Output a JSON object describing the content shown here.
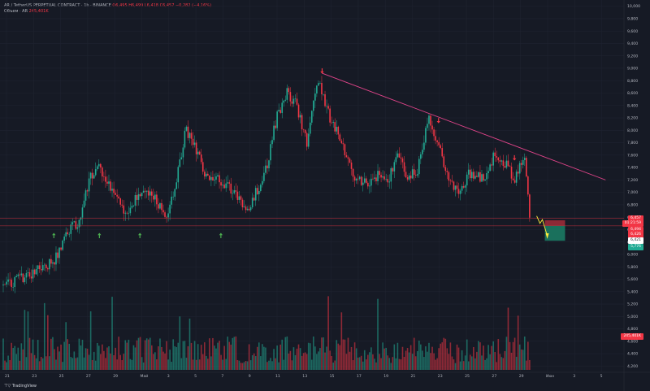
{
  "header": {
    "symbol_line": "AR / TetherUS PERPETUAL CONTRACT · 1h · BINANCE",
    "ohlc": [
      {
        "label": "O",
        "value": "6,495"
      },
      {
        "label": "H",
        "value": "6,499"
      },
      {
        "label": "L",
        "value": "6,418"
      },
      {
        "label": "C",
        "value": "6,457"
      },
      {
        "label": "",
        "value": "−0,282 (−4,16%)"
      }
    ],
    "volume_label": "Объем · AR",
    "volume_value": "245,401K"
  },
  "price_tags": [
    {
      "text": "6,457",
      "color": "#f23645"
    },
    {
      "text": "01:21:59",
      "color": "#f23645"
    },
    {
      "text": "6,494",
      "color": "#f23645"
    },
    {
      "text": "6,426",
      "color": "#f23645"
    },
    {
      "text": "6,421",
      "color": "#ffffff"
    },
    {
      "text": "5,776",
      "color": "#22ab94"
    },
    {
      "text": "245,401K",
      "color": "#f23645"
    }
  ],
  "logo_text": "TradingView",
  "colors": {
    "bg": "#161a25",
    "up": "#22ab94",
    "down": "#f23645",
    "trendline": "#e2448a",
    "support": "#f23645",
    "arrow_up": "#4caf50",
    "arrow_down": "#f23645",
    "target_arrow": "#ffeb3b",
    "axis_text": "#b2b5be"
  },
  "chart_data": {
    "type": "candlestick",
    "title": "",
    "y_axis_ticks": [
      4.2,
      4.4,
      4.6,
      4.8,
      5.0,
      5.2,
      5.4,
      5.6,
      5.8,
      6.0,
      6.2,
      6.4,
      6.6,
      6.8,
      7.0,
      7.2,
      7.4,
      7.6,
      7.8,
      8.0,
      8.2,
      8.4,
      8.6,
      8.8,
      9.0,
      9.2,
      9.4,
      9.6,
      9.8,
      10.0
    ],
    "y_tick_labels": [
      "4,200",
      "4,400",
      "4,600",
      "4,800",
      "5,000",
      "5,200",
      "5,400",
      "5,600",
      "5,800",
      "6,000",
      "6,200",
      "6,400",
      "6,600",
      "6,800",
      "7,000",
      "7,200",
      "7,400",
      "7,600",
      "7,800",
      "8,000",
      "8,200",
      "8,400",
      "8,600",
      "8,800",
      "9,000",
      "9,200",
      "9,400",
      "9,600",
      "9,800",
      "10,000"
    ],
    "x_ticks": [
      "21",
      "23",
      "25",
      "27",
      "29",
      "Май",
      "3",
      "5",
      "7",
      "9",
      "11",
      "13",
      "15",
      "17",
      "19",
      "21",
      "23",
      "25",
      "27",
      "29",
      "Июн",
      "3",
      "5"
    ],
    "ylim": [
      4.1,
      10.1
    ],
    "price_path": [
      [
        0,
        5.5
      ],
      [
        6,
        5.7
      ],
      [
        10,
        5.9
      ],
      [
        13,
        6.4
      ],
      [
        15,
        6.5
      ],
      [
        17,
        7.2
      ],
      [
        19,
        7.4
      ],
      [
        22,
        7.0
      ],
      [
        24,
        6.6
      ],
      [
        27,
        7.0
      ],
      [
        30,
        6.9
      ],
      [
        32,
        6.6
      ],
      [
        34,
        7.1
      ],
      [
        36,
        8.0
      ],
      [
        38,
        7.7
      ],
      [
        40,
        7.3
      ],
      [
        43,
        7.2
      ],
      [
        46,
        7.0
      ],
      [
        48,
        6.7
      ],
      [
        50,
        7.0
      ],
      [
        52,
        7.4
      ],
      [
        54,
        8.2
      ],
      [
        56,
        8.6
      ],
      [
        58,
        8.4
      ],
      [
        60,
        7.8
      ],
      [
        62,
        8.8
      ],
      [
        63,
        8.6
      ],
      [
        65,
        8.1
      ],
      [
        67,
        7.8
      ],
      [
        69,
        7.3
      ],
      [
        72,
        7.1
      ],
      [
        74,
        7.3
      ],
      [
        76,
        7.2
      ],
      [
        78,
        7.6
      ],
      [
        80,
        7.2
      ],
      [
        82,
        7.4
      ],
      [
        84,
        8.2
      ],
      [
        86,
        7.8
      ],
      [
        88,
        7.2
      ],
      [
        90,
        7.0
      ],
      [
        92,
        7.3
      ],
      [
        95,
        7.2
      ],
      [
        97,
        7.6
      ],
      [
        99,
        7.5
      ],
      [
        101,
        7.2
      ],
      [
        103,
        7.6
      ],
      [
        104,
        6.6
      ]
    ],
    "n_candles": 320,
    "trendline": {
      "start": {
        "x": 63,
        "y": 8.92
      },
      "end": {
        "x": 119,
        "y": 7.2
      }
    },
    "support_level": 6.46,
    "target_zone": {
      "top": 6.46,
      "bottom": 6.22,
      "stop_top": 6.55,
      "x_start": 107,
      "x_end": 111
    },
    "up_markers": [
      10,
      19,
      27,
      43
    ],
    "down_markers": [
      63,
      86,
      101
    ],
    "volume": {
      "max": 1.0,
      "levels": [
        0.15,
        0.35,
        0.55
      ]
    }
  }
}
